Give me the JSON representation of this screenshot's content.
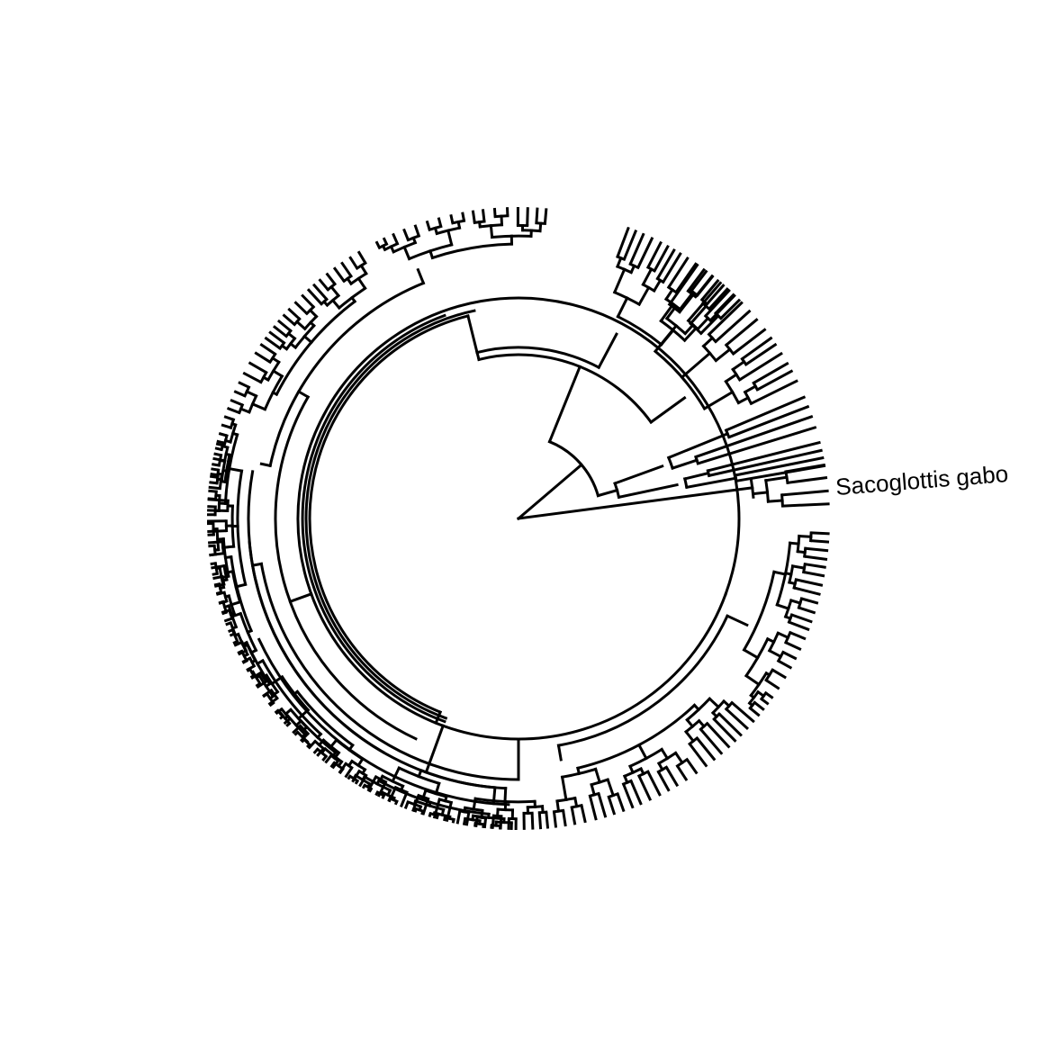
{
  "figure": {
    "kind": "circular phylogenetic tree",
    "tip_label": "Sacoglottis gabo",
    "line_color": "#000000",
    "background": "#ffffff"
  }
}
